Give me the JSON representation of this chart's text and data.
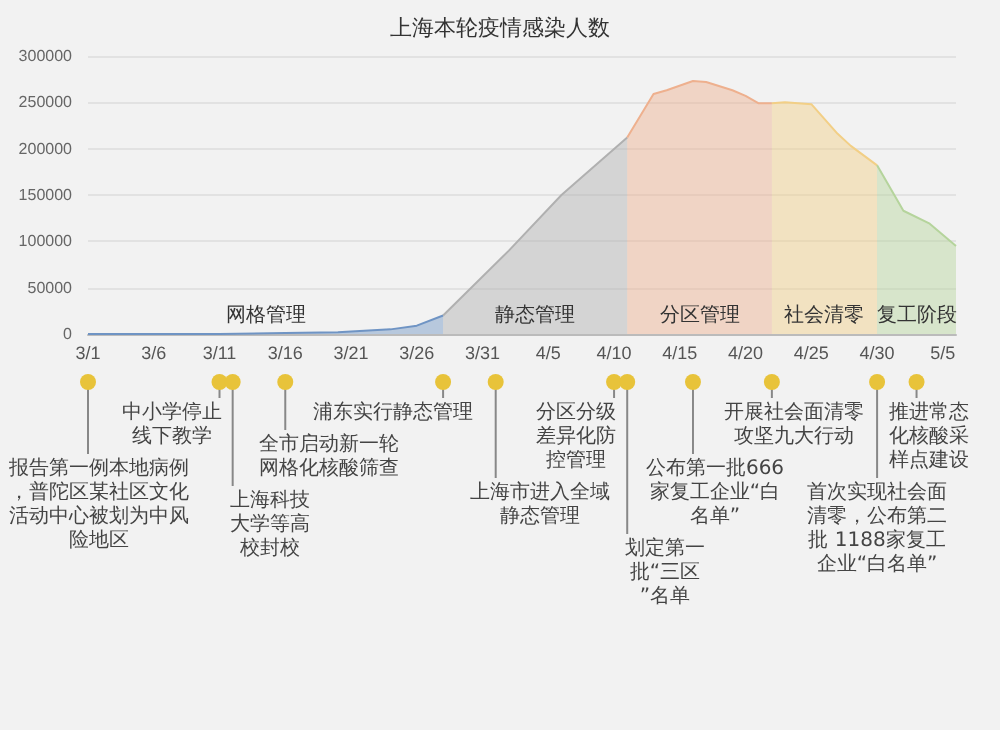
{
  "chart_data": {
    "type": "area",
    "title": "上海本轮疫情感染人数",
    "xlim": [
      "--03-01",
      "--05-06"
    ],
    "xticks": [
      {
        "value": "--03-01",
        "label": "3/1"
      },
      {
        "value": "--03-06",
        "label": "3/6"
      },
      {
        "value": "--03-11",
        "label": "3/11"
      },
      {
        "value": "--03-16",
        "label": "3/16"
      },
      {
        "value": "--03-21",
        "label": "3/21"
      },
      {
        "value": "--03-26",
        "label": "3/26"
      },
      {
        "value": "--03-31",
        "label": "3/31"
      },
      {
        "value": "--04-05",
        "label": "4/5"
      },
      {
        "value": "--04-10",
        "label": "4/10"
      },
      {
        "value": "--04-15",
        "label": "4/15"
      },
      {
        "value": "--04-20",
        "label": "4/20"
      },
      {
        "value": "--04-25",
        "label": "4/25"
      },
      {
        "value": "--04-30",
        "label": "4/30"
      },
      {
        "value": "--05-05",
        "label": "5/5"
      }
    ],
    "ylim": [
      0,
      300000
    ],
    "yticks": [
      0,
      50000,
      100000,
      150000,
      200000,
      250000,
      300000
    ],
    "grid": "y",
    "series": [
      {
        "name": "网格管理",
        "color": "#6f94c4",
        "x": [
          "--03-01",
          "--03-06",
          "--03-11",
          "--03-16",
          "--03-20",
          "--03-24",
          "--03-26",
          "--03-28"
        ],
        "values": [
          0,
          0,
          0,
          1000,
          2000,
          5000,
          9000,
          20000
        ]
      },
      {
        "name": "静态管理",
        "color": "#b0b0b0",
        "x": [
          "--03-28",
          "--04-02",
          "--04-06",
          "--04-11"
        ],
        "values": [
          20000,
          90000,
          150000,
          212000
        ]
      },
      {
        "name": "分区管理",
        "color": "#eeb08e",
        "x": [
          "--04-11",
          "--04-13",
          "--04-14",
          "--04-16",
          "--04-17",
          "--04-19",
          "--04-20",
          "--04-21",
          "--04-22"
        ],
        "values": [
          212000,
          259000,
          263000,
          273000,
          272000,
          263000,
          257000,
          249000,
          249000
        ]
      },
      {
        "name": "社会清零",
        "color": "#f2cf86",
        "x": [
          "--04-22",
          "--04-23",
          "--04-25",
          "--04-27",
          "--04-28",
          "--04-30"
        ],
        "values": [
          249000,
          250000,
          248000,
          216000,
          203000,
          182000
        ]
      },
      {
        "name": "复工阶段",
        "color": "#b5d49c",
        "x": [
          "--04-30",
          "--05-02",
          "--05-04",
          "--05-06"
        ],
        "values": [
          182000,
          133000,
          119000,
          95000
        ]
      }
    ],
    "ref_lines": [
      {
        "axis": "x",
        "value": "--03-01",
        "label": "报告第一例本地病例，普陀区某社区文化活动中心被划为中风险地区"
      },
      {
        "axis": "x",
        "value": "--03-11",
        "label": "中小学停止线下教学"
      },
      {
        "axis": "x",
        "value": "--03-12",
        "label": "上海科技大学等高校封校"
      },
      {
        "axis": "x",
        "value": "--03-16",
        "label": "全市启动新一轮网格化核酸筛查"
      },
      {
        "axis": "x",
        "value": "--03-28",
        "label": "浦东实行静态管理"
      },
      {
        "axis": "x",
        "value": "--04-01",
        "label": "上海市进入全域静态管理"
      },
      {
        "axis": "x",
        "value": "--04-10",
        "label": "分区分级差异化防控管理"
      },
      {
        "axis": "x",
        "value": "--04-11",
        "label": "划定第一批“三区”名单"
      },
      {
        "axis": "x",
        "value": "--04-16",
        "label": "公布第一批666家复工企业“白名单”"
      },
      {
        "axis": "x",
        "value": "--04-22",
        "label": "开展社会面清零攻坚九大行动"
      },
      {
        "axis": "x",
        "value": "--04-30",
        "label": "首次实现社会面清零，公布第二批 1188家复工企业“白名单”"
      },
      {
        "axis": "x",
        "value": "--05-03",
        "label": "推进常态化核酸采样点建设"
      }
    ]
  }
}
